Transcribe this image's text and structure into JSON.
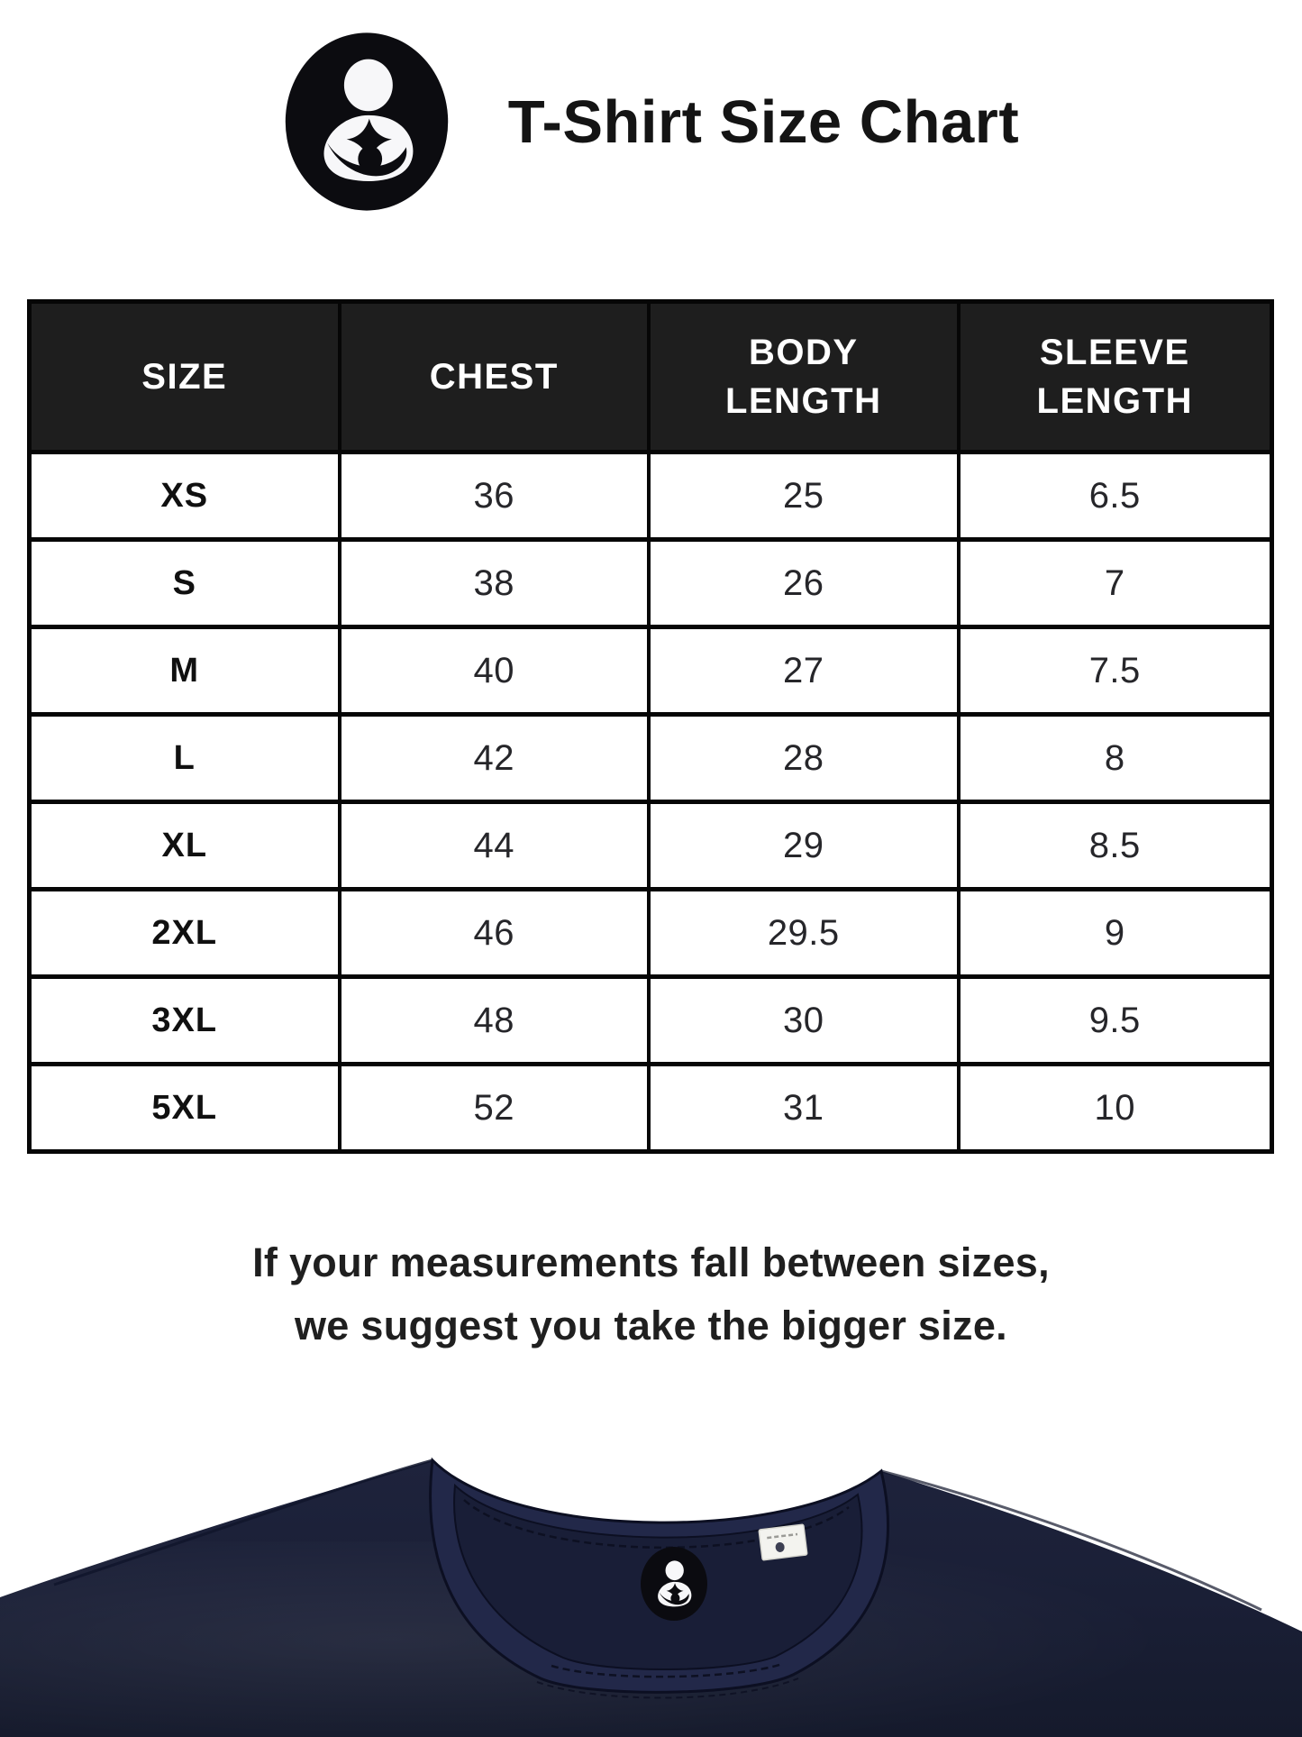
{
  "header": {
    "title": "T-Shirt Size Chart",
    "logo_icon": "mother-baby-brand-logo"
  },
  "table": {
    "columns": [
      "SIZE",
      "CHEST",
      "BODY LENGTH",
      "SLEEVE LENGTH"
    ],
    "rows": [
      {
        "size": "XS",
        "chest": "36",
        "body_length": "25",
        "sleeve_length": "6.5"
      },
      {
        "size": "S",
        "chest": "38",
        "body_length": "26",
        "sleeve_length": "7"
      },
      {
        "size": "M",
        "chest": "40",
        "body_length": "27",
        "sleeve_length": "7.5"
      },
      {
        "size": "L",
        "chest": "42",
        "body_length": "28",
        "sleeve_length": "8"
      },
      {
        "size": "XL",
        "chest": "44",
        "body_length": "29",
        "sleeve_length": "8.5"
      },
      {
        "size": "2XL",
        "chest": "46",
        "body_length": "29.5",
        "sleeve_length": "9"
      },
      {
        "size": "3XL",
        "chest": "48",
        "body_length": "30",
        "sleeve_length": "9.5"
      },
      {
        "size": "5XL",
        "chest": "52",
        "body_length": "31",
        "sleeve_length": "10"
      }
    ]
  },
  "note": {
    "line1": "If your measurements fall between sizes,",
    "line2": "we suggest you take the bigger size."
  },
  "shirt": {
    "neck_label_icon": "mother-baby-brand-logo",
    "care_tag_icon": "blank-care-tag"
  },
  "colors": {
    "header_bg": "#1e1e1e",
    "table_border": "#060606",
    "logo_black": "#0c0c10",
    "shirt_navy": "#1b2038",
    "collar_band_navy": "#222849",
    "inner_panel_navy": "#191e37"
  }
}
